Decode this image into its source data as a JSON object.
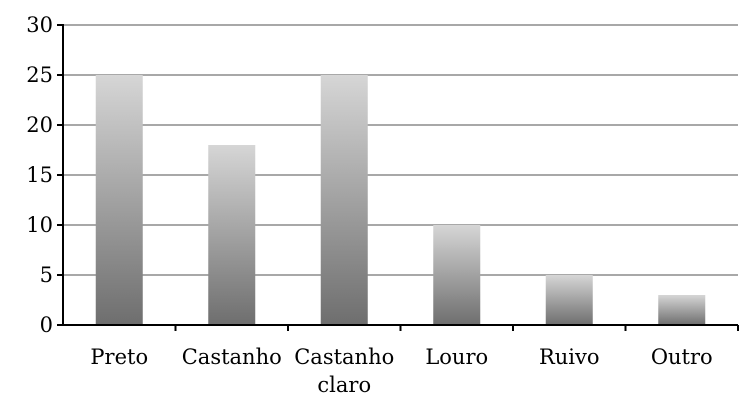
{
  "chart_data": {
    "type": "bar",
    "categories": [
      "Preto",
      "Castanho",
      "Castanho claro",
      "Louro",
      "Ruivo",
      "Outro"
    ],
    "category_lines": [
      [
        "Preto"
      ],
      [
        "Castanho"
      ],
      [
        "Castanho",
        "claro"
      ],
      [
        "Louro"
      ],
      [
        "Ruivo"
      ],
      [
        "Outro"
      ]
    ],
    "values": [
      25,
      18,
      25,
      10,
      5,
      3
    ],
    "y_ticks": [
      "0",
      "5",
      "10",
      "15",
      "20",
      "25",
      "30"
    ],
    "title": "",
    "xlabel": "",
    "ylabel": "",
    "ylim": [
      0,
      30
    ],
    "grid": true,
    "legend": "none",
    "colors": {
      "bar_top": "#d6d6d6",
      "bar_bottom": "#6e6e6e",
      "grid": "#8c8c8c",
      "axis": "#000000"
    }
  }
}
